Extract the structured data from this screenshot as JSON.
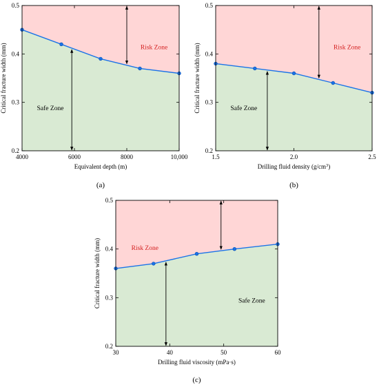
{
  "chart_data": [
    {
      "type": "area",
      "panel_label": "(a)",
      "xlabel": "Equivalent depth (m)",
      "ylabel": "Critical fracture width (mm)",
      "xlim": [
        4000,
        10000
      ],
      "ylim": [
        0.2,
        0.5
      ],
      "x_ticks": [
        "4000",
        "6000",
        "8000",
        "10,000"
      ],
      "x_tick_values": [
        4000,
        6000,
        8000,
        10000
      ],
      "y_ticks": [
        "0.2",
        "0.3",
        "0.4",
        "0.5"
      ],
      "y_tick_values": [
        0.2,
        0.3,
        0.4,
        0.5
      ],
      "x": [
        4000,
        5500,
        7000,
        8500,
        10000
      ],
      "y": [
        0.45,
        0.42,
        0.39,
        0.37,
        0.36
      ],
      "risk_zone_label": "Risk Zone",
      "safe_zone_label": "Safe Zone",
      "arrow_up_x": 8000,
      "arrow_down_x": 5900,
      "risk_label_pos": "upper right",
      "safe_label_pos": "lower left",
      "grid": false
    },
    {
      "type": "area",
      "panel_label": "(b)",
      "xlabel": "Drilling fluid density (g/cm",
      "xlabel_sup": "3",
      "xlabel_tail": ")",
      "ylabel": "Critical fracture width (mm)",
      "xlim": [
        1.5,
        2.5
      ],
      "ylim": [
        0.2,
        0.5
      ],
      "x_ticks": [
        "1.5",
        "2.0",
        "2.5"
      ],
      "x_tick_values": [
        1.5,
        2.0,
        2.5
      ],
      "y_ticks": [
        "0.2",
        "0.3",
        "0.4",
        "0.5"
      ],
      "y_tick_values": [
        0.2,
        0.3,
        0.4,
        0.5
      ],
      "x": [
        1.5,
        1.75,
        2.0,
        2.25,
        2.5
      ],
      "y": [
        0.38,
        0.37,
        0.36,
        0.34,
        0.32
      ],
      "risk_zone_label": "Risk Zone",
      "safe_zone_label": "Safe Zone",
      "arrow_up_x": 2.16,
      "arrow_down_x": 1.83,
      "risk_label_pos": "upper right",
      "safe_label_pos": "lower left",
      "grid": false
    },
    {
      "type": "area",
      "panel_label": "(c)",
      "xlabel": "Drilling fluid viscosity (mPa·s)",
      "ylabel": "Critical fracture width (mm)",
      "xlim": [
        30,
        60
      ],
      "ylim": [
        0.2,
        0.5
      ],
      "x_ticks": [
        "30",
        "40",
        "50",
        "60"
      ],
      "x_tick_values": [
        30,
        40,
        50,
        60
      ],
      "y_ticks": [
        "0.2",
        "0.3",
        "0.4",
        "0.5"
      ],
      "y_tick_values": [
        0.2,
        0.3,
        0.4,
        0.5
      ],
      "x": [
        30,
        37,
        45,
        52,
        60
      ],
      "y": [
        0.36,
        0.37,
        0.39,
        0.4,
        0.41
      ],
      "risk_zone_label": "Risk Zone",
      "safe_zone_label": "Safe Zone",
      "arrow_up_x": 49.5,
      "arrow_down_x": 39.3,
      "risk_label_pos": "upper left",
      "safe_label_pos": "lower right",
      "grid": false
    }
  ],
  "colors": {
    "risk_fill": "#ffd6d6",
    "safe_fill": "#d9ead3",
    "line": "#1a73e8",
    "marker": "#1a73e8",
    "risk_text": "#d42020",
    "safe_text": "#000000",
    "axis": "#000000"
  }
}
